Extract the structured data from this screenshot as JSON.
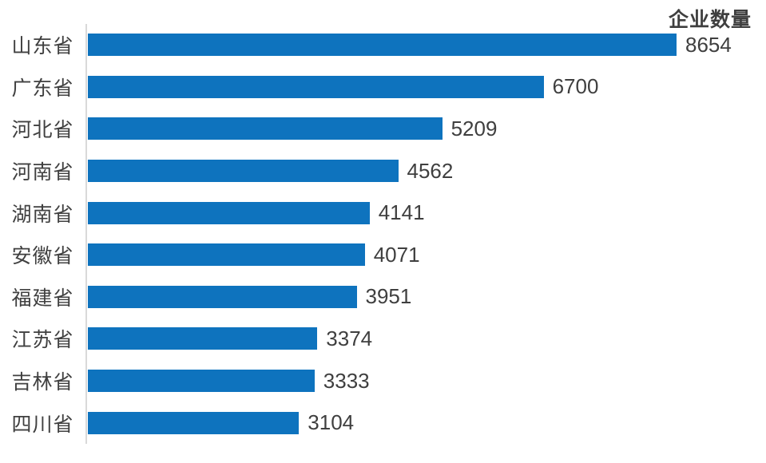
{
  "chart_data": {
    "type": "bar",
    "orientation": "horizontal",
    "title": "企业数量",
    "categories": [
      "山东省",
      "广东省",
      "河北省",
      "河南省",
      "湖南省",
      "安徽省",
      "福建省",
      "江苏省",
      "吉林省",
      "四川省"
    ],
    "values": [
      8654,
      6700,
      5209,
      4562,
      4141,
      4071,
      3951,
      3374,
      3333,
      3104
    ],
    "xlabel": "",
    "ylabel": "",
    "xlim": [
      0,
      8654
    ],
    "grid": false,
    "legend": "none",
    "data_labels": true,
    "bar_color": "#0e73be",
    "title_color": "#3f3f3f",
    "category_label_color": "#404040",
    "value_label_color": "#3f3f3f",
    "axis_line_color": "#d9d9d9"
  }
}
